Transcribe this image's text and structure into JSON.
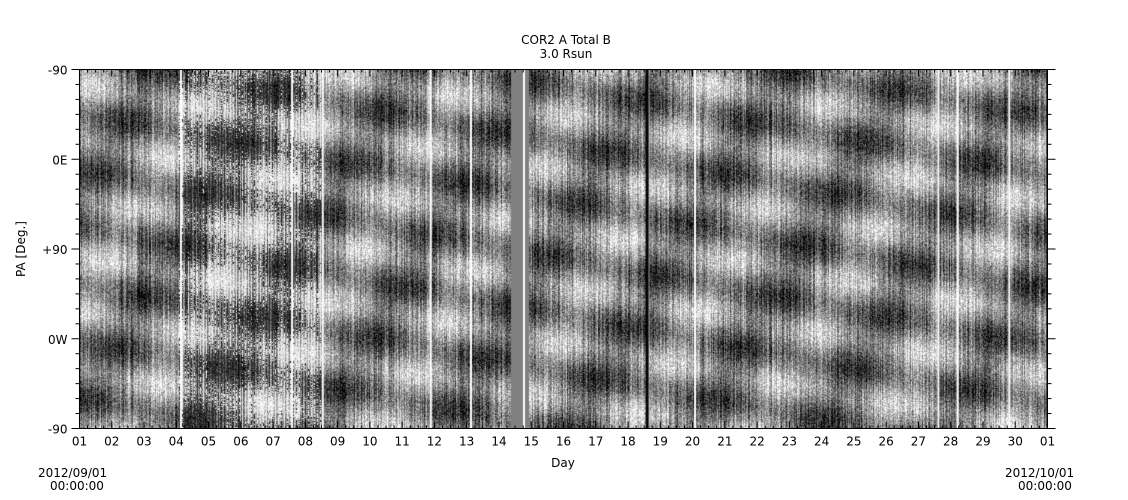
{
  "chart_data": {
    "type": "heatmap",
    "title": "COR2 A Total B",
    "subtitle": "3.0 Rsun",
    "xlabel": "Day",
    "ylabel": "PA [Deg.]",
    "x_tick_labels": [
      "01",
      "02",
      "03",
      "04",
      "05",
      "06",
      "07",
      "08",
      "09",
      "10",
      "11",
      "12",
      "13",
      "14",
      "15",
      "16",
      "17",
      "18",
      "19",
      "20",
      "21",
      "22",
      "23",
      "24",
      "25",
      "26",
      "27",
      "28",
      "29",
      "30",
      "01"
    ],
    "y_tick_labels": [
      "-90",
      "0E",
      "+90",
      "0W",
      "-90"
    ],
    "x_start": "2012/09/01",
    "x_start_time": "00:00:00",
    "x_end": "2012/10/01",
    "x_end_time": "00:00:00",
    "colormap": "grayscale",
    "data_gap_days": [
      [
        13.35,
        13.9
      ]
    ]
  }
}
